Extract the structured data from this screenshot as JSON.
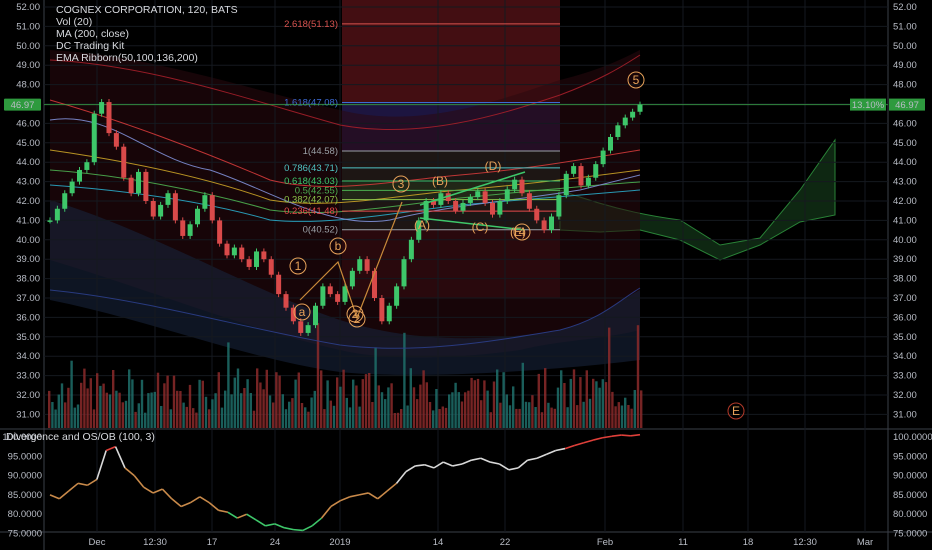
{
  "header": {
    "symbol_line": "COGNEX CORPORATION, 120, BATS",
    "indicators": [
      "Vol (20)",
      "MA (200, close)",
      "DC Trading Kit",
      "EMA Ribborn(50,100,136,200)"
    ]
  },
  "oscillator": {
    "title": "Divergence and OS/OB (100, 3)"
  },
  "price_axis": {
    "ticks": [
      "52.00",
      "51.00",
      "50.00",
      "49.00",
      "48.00",
      "47.00",
      "46.00",
      "45.00",
      "44.00",
      "43.00",
      "42.00",
      "41.00",
      "40.00",
      "39.00",
      "38.00",
      "37.00",
      "36.00",
      "35.00",
      "34.00",
      "33.00",
      "32.00",
      "31.00"
    ],
    "last_price": "46.97",
    "percent_badge": "13.10%"
  },
  "osc_axis": {
    "ticks": [
      "100.0000",
      "95.0000",
      "90.0000",
      "85.0000",
      "80.0000",
      "75.0000"
    ]
  },
  "time_axis": {
    "ticks": [
      "Dec",
      "12:30",
      "17",
      "24",
      "2019",
      "14",
      "22",
      "Feb",
      "11",
      "18",
      "12:30",
      "Mar"
    ]
  },
  "fib_levels": [
    {
      "label": "2.618(51.13)",
      "value": 51.13,
      "color": "#d9534f"
    },
    {
      "label": "1.618(47.08)",
      "value": 47.08,
      "color": "#3d6bd6"
    },
    {
      "label": "1(44.58)",
      "value": 44.58,
      "color": "#9aa0a6"
    },
    {
      "label": "0.786(43.71)",
      "value": 43.71,
      "color": "#4fc3c3"
    },
    {
      "label": "0.618(43.03)",
      "value": 43.03,
      "color": "#3ec76a"
    },
    {
      "label": "0.5(42.55)",
      "value": 42.55,
      "color": "#4caf50"
    },
    {
      "label": "0.382(42.07)",
      "value": 42.07,
      "color": "#8bc34a"
    },
    {
      "label": "0.236(41.48)",
      "value": 41.48,
      "color": "#e64a4a"
    },
    {
      "label": "0(40.52)",
      "value": 40.52,
      "color": "#9aa0a6"
    }
  ],
  "wave_labels": [
    "1",
    "2",
    "3",
    "4",
    "5",
    "a",
    "b",
    "2",
    "(A)",
    "(B)",
    "(C)",
    "(D)",
    "(E)",
    "E"
  ],
  "chart_data": {
    "type": "line",
    "title": "COGNEX CORPORATION, 120, BATS",
    "ylim": [
      30.5,
      52.3
    ],
    "price_series": [
      41.0,
      41.6,
      42.4,
      43.0,
      43.6,
      44.0,
      46.5,
      47.1,
      45.5,
      44.8,
      43.2,
      42.4,
      43.5,
      42.0,
      41.2,
      41.8,
      42.4,
      41.0,
      40.2,
      40.8,
      41.6,
      42.3,
      41.0,
      39.8,
      39.2,
      39.6,
      39.0,
      38.6,
      39.4,
      39.0,
      38.2,
      37.2,
      36.5,
      35.8,
      35.2,
      35.6,
      36.6,
      37.6,
      37.2,
      36.8,
      37.6,
      38.4,
      39.0,
      38.4,
      37.0,
      35.8,
      36.6,
      37.6,
      39.0,
      40.0,
      41.0,
      42.0,
      41.8,
      42.4,
      42.0,
      41.5,
      41.9,
      42.2,
      42.5,
      41.9,
      41.3,
      42.0,
      42.6,
      43.1,
      42.4,
      41.6,
      41.0,
      40.5,
      41.2,
      42.3,
      43.4,
      43.8,
      42.8,
      43.2,
      43.9,
      44.6,
      45.3,
      45.9,
      46.3,
      46.6,
      46.97
    ],
    "last_price": 46.97,
    "osc_ylim": [
      74,
      101.5
    ],
    "osc_series": [
      85.0,
      84.0,
      86.0,
      88.0,
      87.5,
      89.0,
      96.5,
      97.5,
      92.0,
      90.0,
      87.0,
      85.5,
      86.5,
      84.0,
      82.0,
      83.0,
      84.5,
      83.0,
      81.0,
      80.5,
      79.0,
      80.0,
      78.5,
      77.0,
      77.5,
      76.5,
      76.0,
      75.8,
      77.0,
      79.0,
      82.0,
      83.5,
      84.5,
      85.0,
      85.5,
      84.0,
      86.0,
      88.0,
      91.0,
      92.5,
      92.8,
      92.0,
      93.5,
      92.5,
      93.0,
      94.0,
      94.5,
      93.5,
      93.0,
      91.5,
      92.0,
      94.0,
      94.5,
      95.5,
      96.5,
      97.0,
      97.8,
      98.5,
      99.2,
      99.8,
      100.2,
      100.5,
      100.3,
      100.6
    ]
  }
}
